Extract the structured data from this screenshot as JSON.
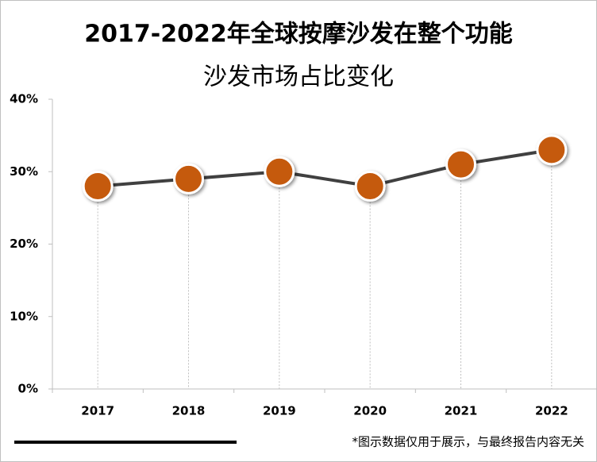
{
  "chart_data": {
    "type": "line",
    "title": [
      "2017-2022年全球按摩沙发在整个功能",
      "沙发市场占比变化"
    ],
    "categories": [
      "2017",
      "2018",
      "2019",
      "2020",
      "2021",
      "2022"
    ],
    "series": [
      {
        "name": "占比",
        "color": "#c55a11",
        "values": [
          28,
          29,
          30,
          28,
          31,
          33
        ]
      }
    ],
    "ylim": [
      0,
      40
    ],
    "yticks": [
      {
        "value": 0,
        "label": "0%"
      },
      {
        "value": 10,
        "label": "10%"
      },
      {
        "value": 20,
        "label": "20%"
      },
      {
        "value": 30,
        "label": "30%"
      },
      {
        "value": 40,
        "label": "40%"
      }
    ],
    "line_color": "#404040",
    "note": "*图示数据仅用于展示，与最终报告内容无关"
  }
}
